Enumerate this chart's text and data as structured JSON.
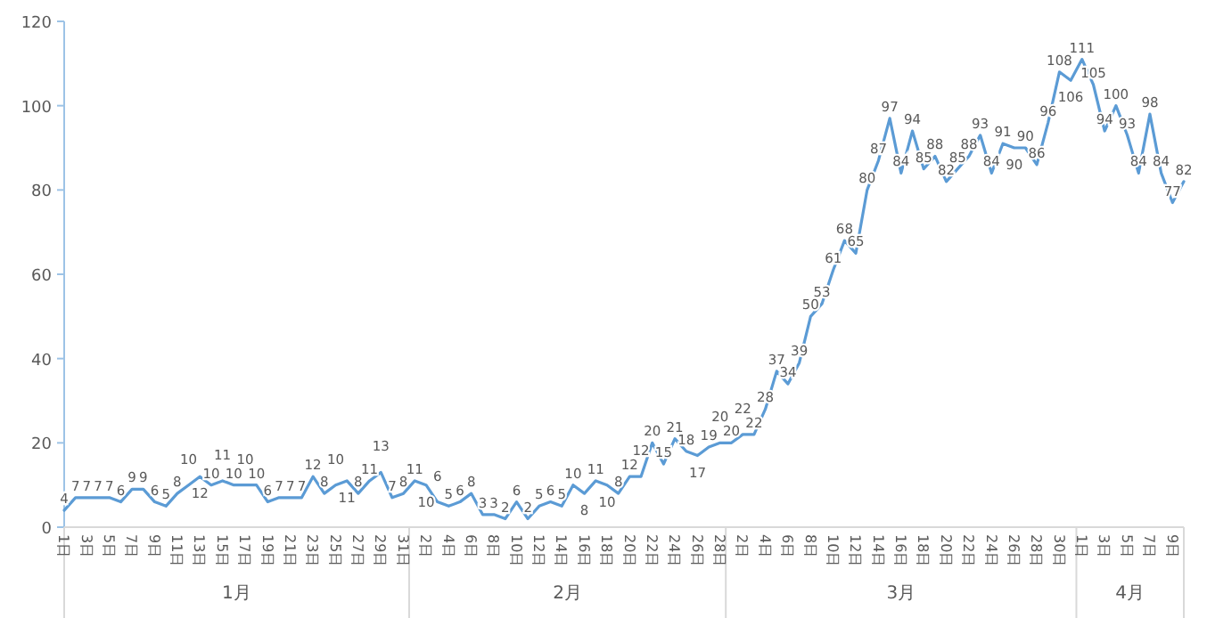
{
  "chart_data": {
    "type": "line",
    "color": "#5b9bd5",
    "data_labels": true,
    "marker": "none",
    "x": [
      "--01-01",
      "--01-02",
      "--01-03",
      "--01-04",
      "--01-05",
      "--01-06",
      "--01-07",
      "--01-08",
      "--01-09",
      "--01-10",
      "--01-11",
      "--01-12",
      "--01-13",
      "--01-14",
      "--01-15",
      "--01-16",
      "--01-17",
      "--01-18",
      "--01-19",
      "--01-20",
      "--01-21",
      "--01-22",
      "--01-23",
      "--01-24",
      "--01-25",
      "--01-26",
      "--01-27",
      "--01-28",
      "--01-29",
      "--01-30",
      "--01-31",
      "--02-01",
      "--02-02",
      "--02-03",
      "--02-04",
      "--02-05",
      "--02-06",
      "--02-07",
      "--02-08",
      "--02-09",
      "--02-10",
      "--02-11",
      "--02-12",
      "--02-13",
      "--02-14",
      "--02-15",
      "--02-16",
      "--02-17",
      "--02-18",
      "--02-19",
      "--02-20",
      "--02-21",
      "--02-22",
      "--02-23",
      "--02-24",
      "--02-25",
      "--02-26",
      "--02-27",
      "--02-28",
      "--03-01",
      "--03-02",
      "--03-03",
      "--03-04",
      "--03-05",
      "--03-06",
      "--03-07",
      "--03-08",
      "--03-09",
      "--03-10",
      "--03-11",
      "--03-12",
      "--03-13",
      "--03-14",
      "--03-15",
      "--03-16",
      "--03-17",
      "--03-18",
      "--03-19",
      "--03-20",
      "--03-21",
      "--03-22",
      "--03-23",
      "--03-24",
      "--03-25",
      "--03-26",
      "--03-27",
      "--03-28",
      "--03-29",
      "--03-30",
      "--03-31",
      "--04-01",
      "--04-02",
      "--04-03",
      "--04-04",
      "--04-05",
      "--04-06",
      "--04-07",
      "--04-08",
      "--04-09",
      "--04-10"
    ],
    "values": [
      4,
      7,
      7,
      7,
      7,
      6,
      9,
      9,
      6,
      5,
      8,
      10,
      12,
      10,
      11,
      10,
      10,
      10,
      6,
      7,
      7,
      7,
      12,
      8,
      10,
      11,
      8,
      11,
      13,
      7,
      8,
      11,
      10,
      6,
      5,
      6,
      8,
      3,
      3,
      2,
      6,
      2,
      5,
      6,
      5,
      10,
      8,
      11,
      10,
      8,
      12,
      12,
      20,
      15,
      21,
      18,
      17,
      19,
      20,
      20,
      22,
      22,
      28,
      37,
      34,
      39,
      50,
      53,
      61,
      68,
      65,
      80,
      87,
      97,
      84,
      94,
      85,
      88,
      82,
      85,
      88,
      93,
      84,
      91,
      90,
      90,
      86,
      96,
      108,
      106,
      111,
      105,
      94,
      100,
      93,
      84,
      98,
      84,
      77,
      82
    ],
    "xlim": [
      "--01-01",
      "--04-10"
    ],
    "xticks": [
      {
        "value": "--01-01",
        "label": "1日"
      },
      {
        "value": "--01-03",
        "label": "3日"
      },
      {
        "value": "--01-05",
        "label": "5日"
      },
      {
        "value": "--01-07",
        "label": "7日"
      },
      {
        "value": "--01-09",
        "label": "9日"
      },
      {
        "value": "--01-11",
        "label": "11日"
      },
      {
        "value": "--01-13",
        "label": "13日"
      },
      {
        "value": "--01-15",
        "label": "15日"
      },
      {
        "value": "--01-17",
        "label": "17日"
      },
      {
        "value": "--01-19",
        "label": "19日"
      },
      {
        "value": "--01-21",
        "label": "21日"
      },
      {
        "value": "--01-23",
        "label": "23日"
      },
      {
        "value": "--01-25",
        "label": "25日"
      },
      {
        "value": "--01-27",
        "label": "27日"
      },
      {
        "value": "--01-29",
        "label": "29日"
      },
      {
        "value": "--01-31",
        "label": "31日"
      },
      {
        "value": "--02-02",
        "label": "2日"
      },
      {
        "value": "--02-04",
        "label": "4日"
      },
      {
        "value": "--02-06",
        "label": "6日"
      },
      {
        "value": "--02-08",
        "label": "8日"
      },
      {
        "value": "--02-10",
        "label": "10日"
      },
      {
        "value": "--02-12",
        "label": "12日"
      },
      {
        "value": "--02-14",
        "label": "14日"
      },
      {
        "value": "--02-16",
        "label": "16日"
      },
      {
        "value": "--02-18",
        "label": "18日"
      },
      {
        "value": "--02-20",
        "label": "20日"
      },
      {
        "value": "--02-22",
        "label": "22日"
      },
      {
        "value": "--02-24",
        "label": "24日"
      },
      {
        "value": "--02-26",
        "label": "26日"
      },
      {
        "value": "--02-28",
        "label": "28日"
      },
      {
        "value": "--03-02",
        "label": "2日"
      },
      {
        "value": "--03-04",
        "label": "4日"
      },
      {
        "value": "--03-06",
        "label": "6日"
      },
      {
        "value": "--03-08",
        "label": "8日"
      },
      {
        "value": "--03-10",
        "label": "10日"
      },
      {
        "value": "--03-12",
        "label": "12日"
      },
      {
        "value": "--03-14",
        "label": "14日"
      },
      {
        "value": "--03-16",
        "label": "16日"
      },
      {
        "value": "--03-18",
        "label": "18日"
      },
      {
        "value": "--03-20",
        "label": "20日"
      },
      {
        "value": "--03-22",
        "label": "22日"
      },
      {
        "value": "--03-24",
        "label": "24日"
      },
      {
        "value": "--03-26",
        "label": "26日"
      },
      {
        "value": "--03-28",
        "label": "28日"
      },
      {
        "value": "--03-30",
        "label": "30日"
      },
      {
        "value": "--04-01",
        "label": "1日"
      },
      {
        "value": "--04-03",
        "label": "3日"
      },
      {
        "value": "--04-05",
        "label": "5日"
      },
      {
        "value": "--04-07",
        "label": "7日"
      },
      {
        "value": "--04-09",
        "label": "9日"
      }
    ],
    "ylim": [
      0,
      120
    ],
    "yticks": [
      0,
      20,
      40,
      60,
      80,
      100,
      120
    ],
    "annotations": [
      "1月",
      "2月",
      "3月",
      "4月"
    ]
  }
}
